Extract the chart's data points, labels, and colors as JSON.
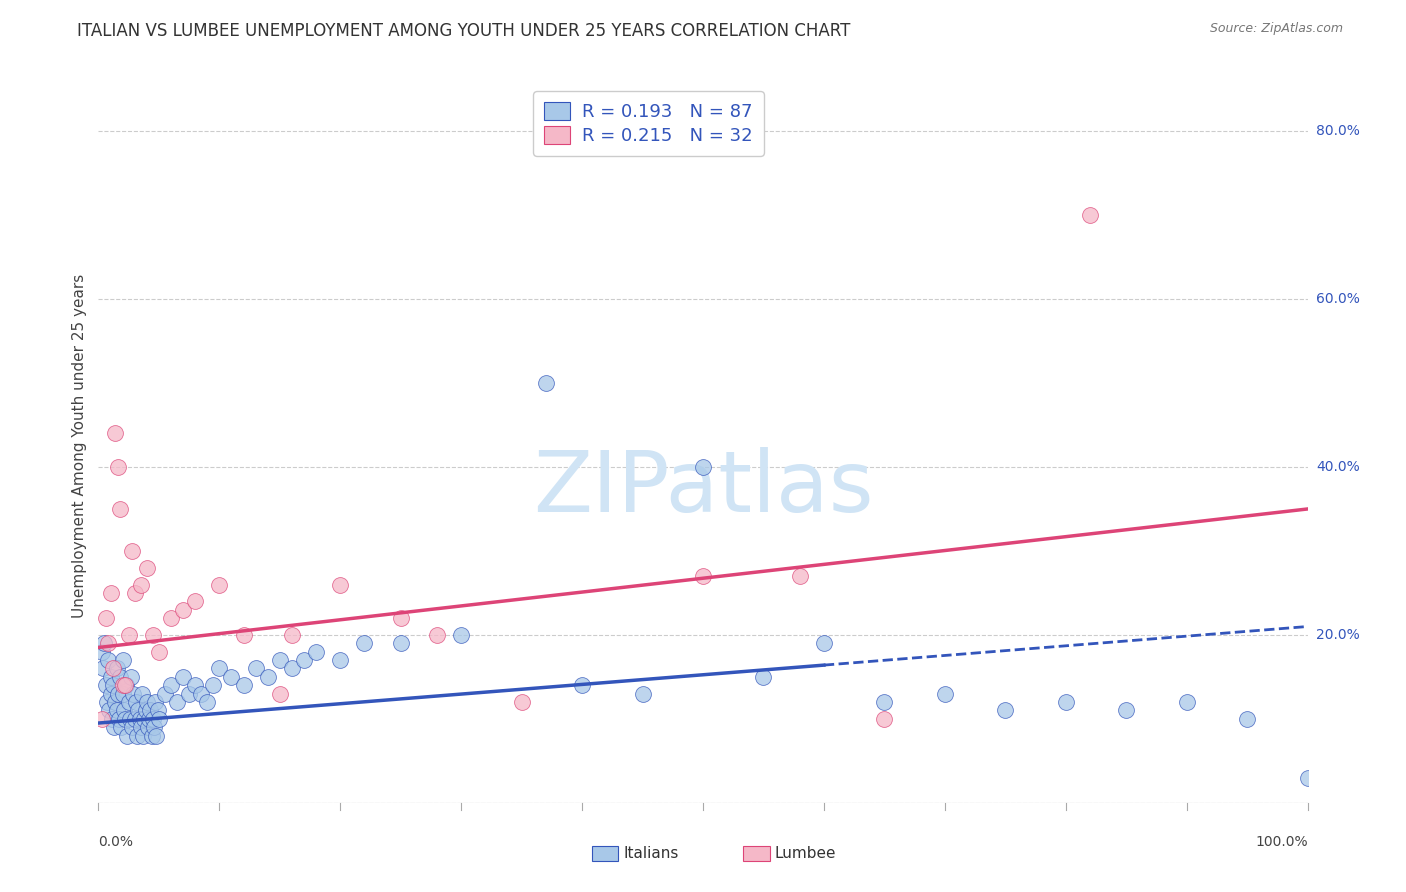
{
  "title": "ITALIAN VS LUMBEE UNEMPLOYMENT AMONG YOUTH UNDER 25 YEARS CORRELATION CHART",
  "source": "Source: ZipAtlas.com",
  "ylabel": "Unemployment Among Youth under 25 years",
  "legend_italian": "R = 0.193   N = 87",
  "legend_lumbee": "R = 0.215   N = 32",
  "italian_color": "#A8C8E8",
  "lumbee_color": "#F5B8C8",
  "trend_italian_color": "#3355BB",
  "trend_lumbee_color": "#DD4477",
  "watermark": "ZIPatlas",
  "watermark_color": "#D0E4F5",
  "background_color": "#FFFFFF",
  "grid_color": "#CCCCCC",
  "xlim": [
    0,
    1.0
  ],
  "ylim": [
    0,
    0.85
  ],
  "ytick_vals": [
    0.0,
    0.2,
    0.4,
    0.6,
    0.8
  ],
  "ytick_labels": [
    "0.0%",
    "20.0%",
    "40.0%",
    "60.0%",
    "80.0%"
  ],
  "italian_x": [
    0.003,
    0.004,
    0.005,
    0.006,
    0.007,
    0.008,
    0.009,
    0.01,
    0.01,
    0.011,
    0.012,
    0.013,
    0.014,
    0.015,
    0.015,
    0.016,
    0.017,
    0.018,
    0.019,
    0.02,
    0.02,
    0.021,
    0.022,
    0.023,
    0.024,
    0.025,
    0.026,
    0.027,
    0.028,
    0.029,
    0.03,
    0.031,
    0.032,
    0.033,
    0.034,
    0.035,
    0.036,
    0.037,
    0.038,
    0.039,
    0.04,
    0.041,
    0.042,
    0.043,
    0.044,
    0.045,
    0.046,
    0.047,
    0.048,
    0.049,
    0.05,
    0.055,
    0.06,
    0.065,
    0.07,
    0.075,
    0.08,
    0.085,
    0.09,
    0.095,
    0.1,
    0.11,
    0.12,
    0.13,
    0.14,
    0.15,
    0.16,
    0.17,
    0.18,
    0.2,
    0.22,
    0.25,
    0.3,
    0.37,
    0.4,
    0.45,
    0.5,
    0.55,
    0.6,
    0.65,
    0.7,
    0.75,
    0.8,
    0.85,
    0.9,
    0.95,
    1.0
  ],
  "italian_y": [
    0.18,
    0.16,
    0.19,
    0.14,
    0.12,
    0.17,
    0.11,
    0.15,
    0.13,
    0.1,
    0.14,
    0.09,
    0.12,
    0.16,
    0.11,
    0.13,
    0.1,
    0.15,
    0.09,
    0.13,
    0.17,
    0.11,
    0.1,
    0.14,
    0.08,
    0.12,
    0.1,
    0.15,
    0.09,
    0.13,
    0.1,
    0.12,
    0.08,
    0.11,
    0.1,
    0.09,
    0.13,
    0.08,
    0.1,
    0.11,
    0.12,
    0.09,
    0.1,
    0.11,
    0.08,
    0.1,
    0.09,
    0.12,
    0.08,
    0.11,
    0.1,
    0.13,
    0.14,
    0.12,
    0.15,
    0.13,
    0.14,
    0.13,
    0.12,
    0.14,
    0.16,
    0.15,
    0.14,
    0.16,
    0.15,
    0.17,
    0.16,
    0.17,
    0.18,
    0.17,
    0.19,
    0.19,
    0.2,
    0.5,
    0.14,
    0.13,
    0.4,
    0.15,
    0.19,
    0.12,
    0.13,
    0.11,
    0.12,
    0.11,
    0.12,
    0.1,
    0.03
  ],
  "lumbee_x": [
    0.003,
    0.006,
    0.008,
    0.01,
    0.012,
    0.014,
    0.016,
    0.018,
    0.02,
    0.022,
    0.025,
    0.028,
    0.03,
    0.035,
    0.04,
    0.045,
    0.05,
    0.06,
    0.07,
    0.08,
    0.1,
    0.12,
    0.15,
    0.16,
    0.2,
    0.25,
    0.28,
    0.35,
    0.5,
    0.58,
    0.65,
    0.82
  ],
  "lumbee_y": [
    0.1,
    0.22,
    0.19,
    0.25,
    0.16,
    0.44,
    0.4,
    0.35,
    0.14,
    0.14,
    0.2,
    0.3,
    0.25,
    0.26,
    0.28,
    0.2,
    0.18,
    0.22,
    0.23,
    0.24,
    0.26,
    0.2,
    0.13,
    0.2,
    0.26,
    0.22,
    0.2,
    0.12,
    0.27,
    0.27,
    0.1,
    0.7
  ],
  "trend_it_intercept": 0.095,
  "trend_it_slope": 0.115,
  "trend_lu_intercept": 0.185,
  "trend_lu_slope": 0.165,
  "solid_cutoff": 0.6
}
